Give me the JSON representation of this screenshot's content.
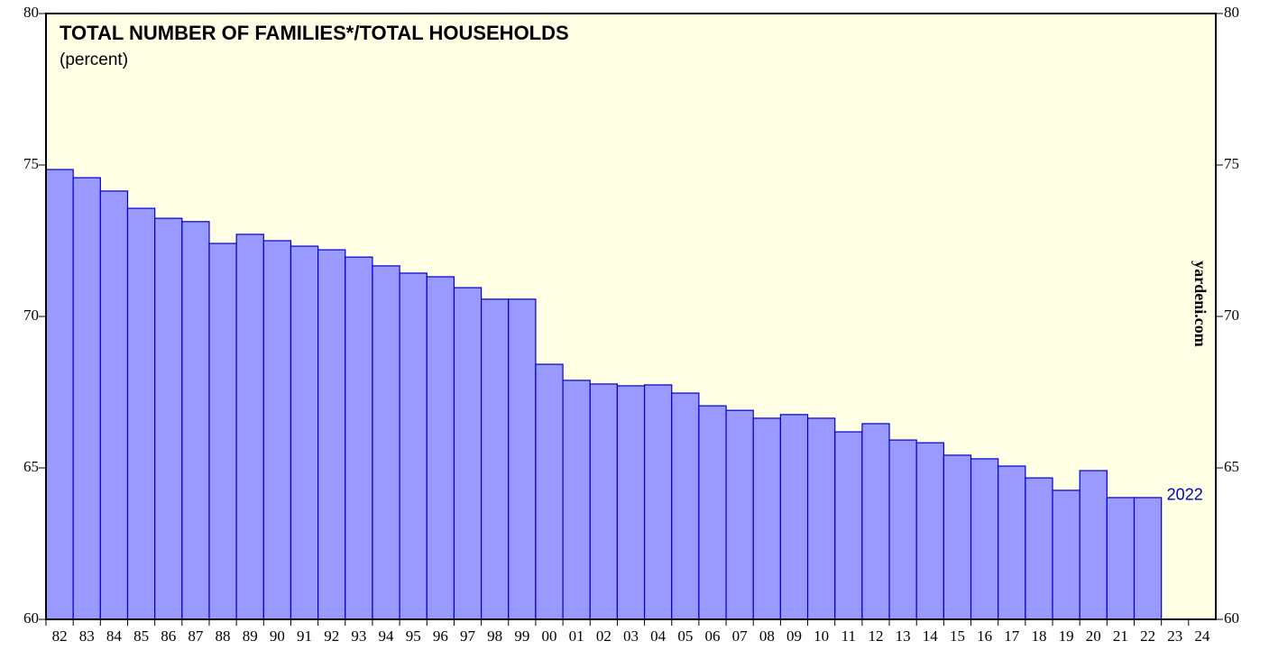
{
  "chart_data": {
    "type": "bar",
    "title": "TOTAL NUMBER OF FAMILIES*/TOTAL HOUSEHOLDS",
    "subtitle": "(percent)",
    "categories": [
      "82",
      "83",
      "84",
      "85",
      "86",
      "87",
      "88",
      "89",
      "90",
      "91",
      "92",
      "93",
      "94",
      "95",
      "96",
      "97",
      "98",
      "99",
      "00",
      "01",
      "02",
      "03",
      "04",
      "05",
      "06",
      "07",
      "08",
      "09",
      "10",
      "11",
      "12",
      "13",
      "14",
      "15",
      "16",
      "17",
      "18",
      "19",
      "20",
      "21",
      "22",
      "23",
      "24"
    ],
    "values": [
      74.85,
      74.58,
      74.14,
      73.57,
      73.24,
      73.13,
      72.41,
      72.71,
      72.5,
      72.32,
      72.2,
      71.96,
      71.67,
      71.43,
      71.31,
      70.95,
      70.57,
      70.57,
      68.42,
      67.89,
      67.77,
      67.71,
      67.74,
      67.47,
      67.05,
      66.9,
      66.64,
      66.76,
      66.64,
      66.19,
      66.46,
      65.92,
      65.83,
      65.42,
      65.3,
      65.06,
      64.67,
      64.26,
      64.91,
      64.02,
      64.02,
      null,
      null
    ],
    "color": "#9999ff",
    "edge_color": "#0000cc",
    "background": "#ffffe6",
    "ylim": [
      60,
      80
    ],
    "yticks": [
      60,
      65,
      70,
      75,
      80
    ],
    "y2lim": [
      60,
      80
    ],
    "y2ticks": [
      60,
      65,
      70,
      75,
      80
    ],
    "annotation": "2022",
    "source": "yardeni.com"
  }
}
